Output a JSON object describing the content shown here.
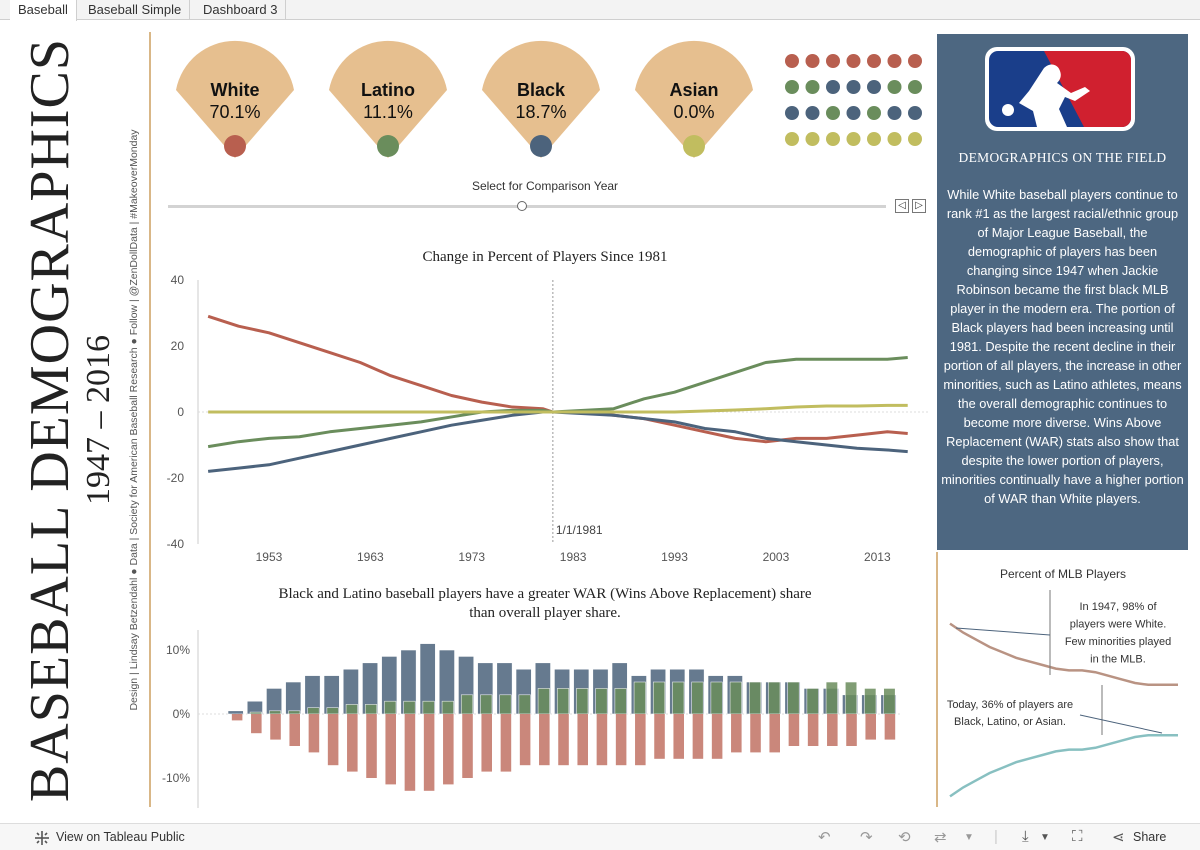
{
  "tabs": [
    {
      "label": "Baseball",
      "active": true
    },
    {
      "label": "Baseball Simple",
      "active": false
    },
    {
      "label": "Dashboard 3",
      "active": false
    }
  ],
  "side": {
    "title": "BASEBALL DEMOGRAPHICS",
    "years": "1947 – 2016",
    "credits": "Design | Lindsay Betzendahl ● Data | Society for American Baseball Research ● Follow | @ZenDollData | #MakeoverMonday"
  },
  "groups": [
    {
      "label": "White",
      "value": "70.1%",
      "color": "#b85f4f"
    },
    {
      "label": "Latino",
      "value": "11.1%",
      "color": "#6a8d5c"
    },
    {
      "label": "Black",
      "value": "18.7%",
      "color": "#4c637c"
    },
    {
      "label": "Asian",
      "value": "0.0%",
      "color": "#c1bd5f"
    }
  ],
  "dot_rows": [
    [
      "#b85f4f",
      "#b85f4f",
      "#b85f4f",
      "#b85f4f",
      "#b85f4f",
      "#b85f4f",
      "#b85f4f"
    ],
    [
      "#6a8d5c",
      "#6a8d5c",
      "#4c637c",
      "#4c637c",
      "#4c637c",
      "#6a8d5c",
      "#6a8d5c"
    ],
    [
      "#4c637c",
      "#4c637c",
      "#6a8d5c",
      "#4c637c",
      "#6a8d5c",
      "#4c637c",
      "#4c637c"
    ],
    [
      "#c1bd5f",
      "#c1bd5f",
      "#c1bd5f",
      "#c1bd5f",
      "#c1bd5f",
      "#c1bd5f",
      "#c1bd5f"
    ]
  ],
  "slider": {
    "label": "Select for Comparison Year",
    "prev": "◁",
    "next": "▷"
  },
  "panel": {
    "heading": "DEMOGRAPHICS ON THE FIELD",
    "text": "While White baseball players continue to rank #1 as the largest racial/ethnic group of Major League Baseball, the demographic of players has been changing since 1947 when Jackie Robinson became the first black MLB player in the modern era. The portion of Black players had been increasing until 1981. Despite the recent decline in their portion of all players, the increase in other minorities, such as Latino athletes, means the overall demographic continues to become more diverse. Wins Above Replacement (WAR) stats also show that despite the lower portion of players, minorities continually have a higher portion of WAR than White players."
  },
  "line_chart": {
    "title": "Change in Percent of Players Since 1981",
    "ref_label": "1/1/1981",
    "y_ticks": [
      "40",
      "20",
      "0",
      "-20",
      "-40"
    ],
    "x_ticks": [
      "1953",
      "1963",
      "1973",
      "1983",
      "1993",
      "2003",
      "2013"
    ]
  },
  "bar_chart": {
    "title_line1": "Black and Latino baseball players have a greater WAR (Wins Above Replacement) share",
    "title_line2": "than overall player share.",
    "y_ticks": [
      "10%",
      "0%",
      "-10%"
    ]
  },
  "mini_chart": {
    "title": "Percent of MLB Players",
    "note1": [
      "In 1947, 98% of",
      "players were White.",
      "Few minorities played",
      "in the MLB."
    ],
    "note2": [
      "Today, 36% of players are",
      "Black, Latino, or Asian."
    ]
  },
  "chart_data": [
    {
      "type": "line",
      "title": "Change in Percent of Players Since 1981",
      "xlabel": "",
      "ylabel": "",
      "ylim": [
        -40,
        40
      ],
      "xlim": [
        1946,
        2018
      ],
      "reference_line": 1981,
      "x": [
        1947,
        1950,
        1953,
        1956,
        1959,
        1962,
        1965,
        1968,
        1971,
        1974,
        1977,
        1980,
        1981,
        1984,
        1987,
        1990,
        1993,
        1996,
        1999,
        2002,
        2005,
        2008,
        2011,
        2014,
        2016
      ],
      "series": [
        {
          "color": "#b85f4f",
          "values": [
            29,
            26,
            24,
            21,
            18,
            15,
            11,
            8,
            5,
            3,
            1.5,
            1,
            0,
            0,
            -1,
            -2,
            -4,
            -6,
            -8,
            -9,
            -8,
            -8,
            -7,
            -6,
            -6.5
          ]
        },
        {
          "color": "#6a8d5c",
          "values": [
            -10.5,
            -9,
            -8,
            -7.5,
            -6,
            -5,
            -4,
            -3,
            -1.5,
            0,
            0.5,
            0.5,
            0,
            0.5,
            1,
            4,
            6,
            9,
            12,
            15,
            16,
            16,
            16,
            16,
            16.5
          ]
        },
        {
          "color": "#4c637c",
          "values": [
            -18,
            -17,
            -16,
            -14,
            -12,
            -10,
            -8,
            -6,
            -4,
            -2.5,
            -1,
            0,
            0,
            -0.5,
            -1,
            -2,
            -3,
            -5,
            -6,
            -8,
            -9,
            -10,
            -11,
            -11.5,
            -12
          ]
        },
        {
          "color": "#c1bd5f",
          "values": [
            0,
            0,
            0,
            0,
            0,
            0,
            0,
            0,
            0,
            0,
            0,
            0,
            0,
            0,
            0,
            0,
            0,
            0.3,
            0.6,
            1,
            1.5,
            1.8,
            1.8,
            2,
            2
          ]
        }
      ]
    },
    {
      "type": "bar",
      "title": "Black and Latino baseball players have a greater WAR (Wins Above Replacement) share than overall player share.",
      "ylim": [
        -14,
        12
      ],
      "x": [
        1947,
        1949,
        1951,
        1953,
        1955,
        1957,
        1959,
        1961,
        1963,
        1965,
        1967,
        1969,
        1971,
        1973,
        1975,
        1977,
        1979,
        1981,
        1983,
        1985,
        1987,
        1989,
        1991,
        1993,
        1995,
        1997,
        1999,
        2001,
        2003,
        2005,
        2007,
        2009,
        2011,
        2013,
        2015
      ],
      "series": [
        {
          "name": "Black",
          "color": "#4c637c",
          "values": [
            0.5,
            2,
            4,
            5,
            6,
            6,
            7,
            8,
            9,
            10,
            11,
            10,
            9,
            8,
            8,
            7,
            8,
            7,
            7,
            7,
            8,
            6,
            7,
            7,
            7,
            6,
            6,
            5,
            5,
            5,
            4,
            4,
            3,
            3,
            3
          ]
        },
        {
          "name": "Latino",
          "color": "#6a8d5c",
          "values": [
            0,
            0.3,
            0.5,
            0.5,
            1,
            1,
            1.5,
            1.5,
            2,
            2,
            2,
            2,
            3,
            3,
            3,
            3,
            4,
            4,
            4,
            4,
            4,
            5,
            5,
            5,
            5,
            5,
            5,
            5,
            5,
            5,
            4,
            5,
            5,
            4,
            4
          ]
        },
        {
          "name": "White",
          "color": "#b85f4f",
          "values": [
            -1,
            -3,
            -4,
            -5,
            -6,
            -8,
            -9,
            -10,
            -11,
            -12,
            -12,
            -11,
            -10,
            -9,
            -9,
            -8,
            -8,
            -8,
            -8,
            -8,
            -8,
            -8,
            -7,
            -7,
            -7,
            -7,
            -6,
            -6,
            -6,
            -5,
            -5,
            -5,
            -5,
            -4,
            -4
          ]
        }
      ]
    },
    {
      "type": "line",
      "title": "Percent of MLB Players",
      "x": [
        1947,
        1951,
        1955,
        1959,
        1963,
        1967,
        1971,
        1975,
        1979,
        1983,
        1987,
        1991,
        1995,
        1999,
        2003,
        2007,
        2011,
        2016
      ],
      "series": [
        {
          "color": "#b99383",
          "values": [
            98,
            93,
            89,
            85,
            82,
            79,
            77,
            75,
            73,
            72,
            72,
            71,
            69,
            67,
            65,
            64,
            64,
            64
          ]
        },
        {
          "color": "#88c0c1",
          "values": [
            2,
            7,
            11,
            15,
            18,
            21,
            23,
            25,
            27,
            28,
            28,
            29,
            31,
            33,
            35,
            36,
            36,
            36
          ]
        }
      ]
    }
  ],
  "footer": {
    "view_label": "View on Tableau Public",
    "share_label": "Share"
  }
}
